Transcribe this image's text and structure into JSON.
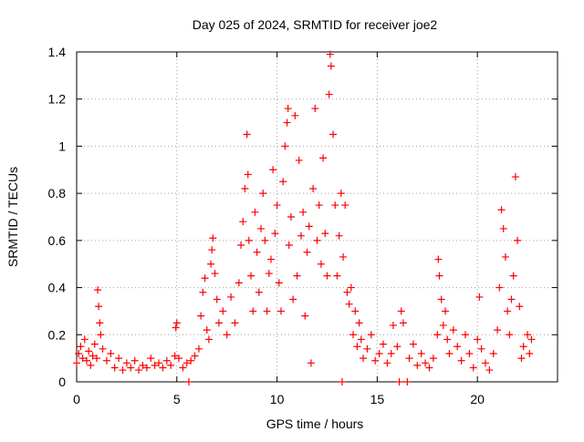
{
  "chart_data": {
    "type": "scatter",
    "title": "Day 025 of 2024, SRMTID for receiver joe2",
    "xlabel": "GPS time / hours",
    "ylabel": "SRMTID / TECUs",
    "xlim": [
      0,
      24
    ],
    "ylim": [
      0,
      1.4
    ],
    "xticks": [
      0,
      5,
      10,
      15,
      20
    ],
    "xtick_labels": [
      "0",
      "5",
      "10",
      "15",
      "20"
    ],
    "yticks": [
      0,
      0.2,
      0.4,
      0.6,
      0.8,
      1.0,
      1.2,
      1.4
    ],
    "ytick_labels": [
      "0",
      "0.2",
      "0.4",
      "0.6",
      "0.8",
      "1",
      "1.2",
      "1.4"
    ],
    "grid": true,
    "marker": "+",
    "color": "#ff0000",
    "series": [
      {
        "name": "SRMTID",
        "points": [
          [
            0.0,
            0.08
          ],
          [
            0.1,
            0.12
          ],
          [
            0.2,
            0.15
          ],
          [
            0.3,
            0.1
          ],
          [
            0.4,
            0.18
          ],
          [
            0.5,
            0.09
          ],
          [
            0.6,
            0.13
          ],
          [
            0.7,
            0.07
          ],
          [
            0.8,
            0.11
          ],
          [
            0.9,
            0.16
          ],
          [
            1.0,
            0.1
          ],
          [
            1.05,
            0.39
          ],
          [
            1.1,
            0.32
          ],
          [
            1.15,
            0.25
          ],
          [
            1.2,
            0.2
          ],
          [
            1.3,
            0.14
          ],
          [
            1.5,
            0.09
          ],
          [
            1.7,
            0.12
          ],
          [
            1.9,
            0.06
          ],
          [
            2.1,
            0.1
          ],
          [
            2.3,
            0.05
          ],
          [
            2.5,
            0.08
          ],
          [
            2.7,
            0.06
          ],
          [
            2.9,
            0.09
          ],
          [
            3.1,
            0.05
          ],
          [
            3.3,
            0.07
          ],
          [
            3.5,
            0.06
          ],
          [
            3.7,
            0.1
          ],
          [
            3.9,
            0.07
          ],
          [
            4.1,
            0.08
          ],
          [
            4.3,
            0.06
          ],
          [
            4.5,
            0.09
          ],
          [
            4.7,
            0.07
          ],
          [
            4.9,
            0.11
          ],
          [
            4.95,
            0.23
          ],
          [
            5.0,
            0.25
          ],
          [
            5.1,
            0.1
          ],
          [
            5.3,
            0.06
          ],
          [
            5.5,
            0.08
          ],
          [
            5.6,
            0.0
          ],
          [
            5.7,
            0.09
          ],
          [
            5.9,
            0.11
          ],
          [
            6.1,
            0.14
          ],
          [
            6.2,
            0.28
          ],
          [
            6.3,
            0.38
          ],
          [
            6.4,
            0.44
          ],
          [
            6.5,
            0.22
          ],
          [
            6.6,
            0.18
          ],
          [
            6.7,
            0.5
          ],
          [
            6.75,
            0.56
          ],
          [
            6.8,
            0.61
          ],
          [
            6.9,
            0.46
          ],
          [
            7.0,
            0.35
          ],
          [
            7.1,
            0.25
          ],
          [
            7.3,
            0.3
          ],
          [
            7.5,
            0.2
          ],
          [
            7.7,
            0.36
          ],
          [
            7.9,
            0.25
          ],
          [
            8.1,
            0.42
          ],
          [
            8.2,
            0.58
          ],
          [
            8.3,
            0.68
          ],
          [
            8.4,
            0.82
          ],
          [
            8.5,
            1.05
          ],
          [
            8.55,
            0.88
          ],
          [
            8.6,
            0.6
          ],
          [
            8.7,
            0.45
          ],
          [
            8.8,
            0.3
          ],
          [
            8.9,
            0.72
          ],
          [
            9.0,
            0.55
          ],
          [
            9.1,
            0.38
          ],
          [
            9.2,
            0.65
          ],
          [
            9.3,
            0.8
          ],
          [
            9.4,
            0.6
          ],
          [
            9.5,
            0.3
          ],
          [
            9.6,
            0.46
          ],
          [
            9.7,
            0.52
          ],
          [
            9.8,
            0.9
          ],
          [
            9.9,
            0.63
          ],
          [
            10.0,
            0.75
          ],
          [
            10.1,
            0.42
          ],
          [
            10.2,
            0.3
          ],
          [
            10.3,
            0.85
          ],
          [
            10.4,
            1.0
          ],
          [
            10.5,
            1.1
          ],
          [
            10.55,
            1.16
          ],
          [
            10.6,
            0.58
          ],
          [
            10.7,
            0.7
          ],
          [
            10.8,
            0.35
          ],
          [
            10.9,
            1.13
          ],
          [
            11.0,
            0.45
          ],
          [
            11.1,
            0.94
          ],
          [
            11.2,
            0.62
          ],
          [
            11.3,
            0.72
          ],
          [
            11.4,
            0.28
          ],
          [
            11.5,
            0.55
          ],
          [
            11.6,
            0.66
          ],
          [
            11.7,
            0.08
          ],
          [
            11.8,
            0.82
          ],
          [
            11.9,
            1.16
          ],
          [
            12.0,
            0.6
          ],
          [
            12.1,
            0.75
          ],
          [
            12.2,
            0.5
          ],
          [
            12.3,
            0.95
          ],
          [
            12.4,
            0.63
          ],
          [
            12.5,
            0.45
          ],
          [
            12.6,
            1.22
          ],
          [
            12.65,
            1.39
          ],
          [
            12.7,
            1.34
          ],
          [
            12.8,
            1.05
          ],
          [
            12.9,
            0.75
          ],
          [
            13.0,
            0.45
          ],
          [
            13.1,
            0.62
          ],
          [
            13.2,
            0.8
          ],
          [
            13.25,
            0.0
          ],
          [
            13.3,
            0.53
          ],
          [
            13.4,
            0.75
          ],
          [
            13.5,
            0.38
          ],
          [
            13.6,
            0.33
          ],
          [
            13.7,
            0.4
          ],
          [
            13.8,
            0.2
          ],
          [
            13.9,
            0.3
          ],
          [
            14.0,
            0.15
          ],
          [
            14.1,
            0.25
          ],
          [
            14.2,
            0.18
          ],
          [
            14.3,
            0.1
          ],
          [
            14.5,
            0.14
          ],
          [
            14.7,
            0.2
          ],
          [
            14.9,
            0.09
          ],
          [
            15.1,
            0.12
          ],
          [
            15.3,
            0.16
          ],
          [
            15.5,
            0.08
          ],
          [
            15.7,
            0.12
          ],
          [
            15.8,
            0.24
          ],
          [
            16.0,
            0.15
          ],
          [
            16.1,
            0.0
          ],
          [
            16.2,
            0.3
          ],
          [
            16.3,
            0.25
          ],
          [
            16.5,
            0.0
          ],
          [
            16.6,
            0.1
          ],
          [
            16.8,
            0.16
          ],
          [
            17.0,
            0.07
          ],
          [
            17.2,
            0.12
          ],
          [
            17.4,
            0.08
          ],
          [
            17.6,
            0.06
          ],
          [
            17.8,
            0.1
          ],
          [
            18.0,
            0.2
          ],
          [
            18.05,
            0.52
          ],
          [
            18.1,
            0.45
          ],
          [
            18.2,
            0.35
          ],
          [
            18.3,
            0.24
          ],
          [
            18.4,
            0.3
          ],
          [
            18.5,
            0.18
          ],
          [
            18.6,
            0.12
          ],
          [
            18.8,
            0.22
          ],
          [
            19.0,
            0.15
          ],
          [
            19.2,
            0.09
          ],
          [
            19.4,
            0.2
          ],
          [
            19.6,
            0.12
          ],
          [
            19.8,
            0.06
          ],
          [
            20.0,
            0.18
          ],
          [
            20.1,
            0.36
          ],
          [
            20.2,
            0.14
          ],
          [
            20.4,
            0.08
          ],
          [
            20.6,
            0.05
          ],
          [
            20.8,
            0.12
          ],
          [
            21.0,
            0.22
          ],
          [
            21.1,
            0.4
          ],
          [
            21.2,
            0.73
          ],
          [
            21.3,
            0.65
          ],
          [
            21.4,
            0.53
          ],
          [
            21.5,
            0.3
          ],
          [
            21.6,
            0.2
          ],
          [
            21.7,
            0.35
          ],
          [
            21.8,
            0.45
          ],
          [
            21.9,
            0.87
          ],
          [
            22.0,
            0.6
          ],
          [
            22.1,
            0.32
          ],
          [
            22.2,
            0.1
          ],
          [
            22.3,
            0.15
          ],
          [
            22.5,
            0.2
          ],
          [
            22.6,
            0.12
          ],
          [
            22.7,
            0.18
          ]
        ]
      }
    ]
  }
}
